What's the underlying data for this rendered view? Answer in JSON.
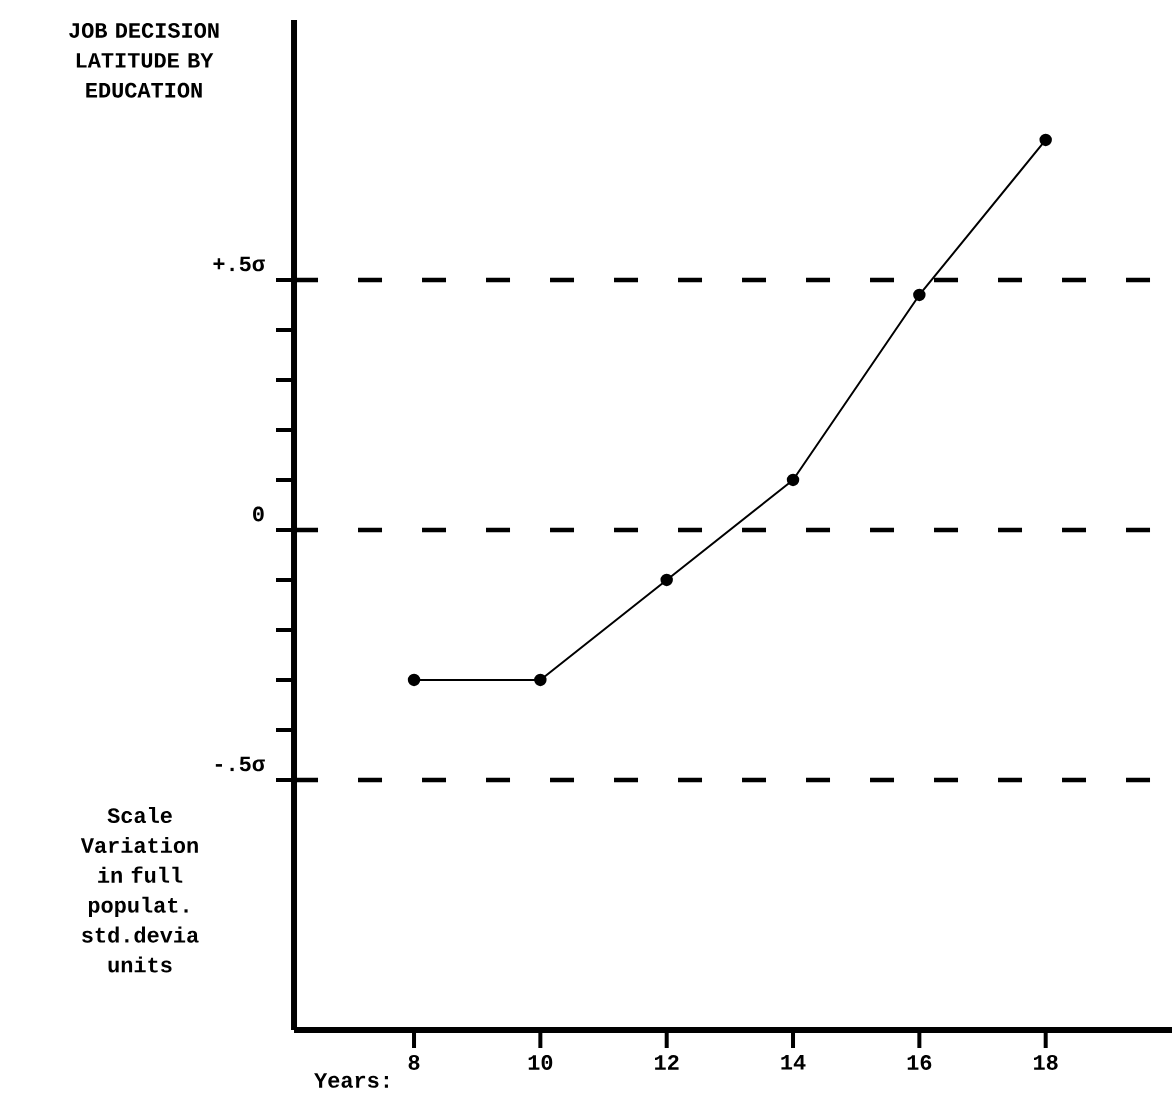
{
  "chart_data": {
    "type": "line",
    "title": "JOB DECISION LATITUDE BY EDUCATION",
    "xlabel": "Years:",
    "x": [
      8,
      10,
      12,
      14,
      16,
      18
    ],
    "values": [
      -0.3,
      -0.3,
      -0.1,
      0.1,
      0.47,
      0.78
    ],
    "color": "#000000",
    "marker": "circle",
    "line_style": "solid",
    "xlim": [
      6.1,
      20
    ],
    "ylim": [
      -1,
      1.02
    ],
    "xticks": [
      8,
      10,
      12,
      14,
      16,
      18
    ],
    "yticks": [
      {
        "value": -0.5,
        "label": "-.5σ"
      },
      {
        "value": -0.4,
        "label": null
      },
      {
        "value": -0.3,
        "label": null
      },
      {
        "value": -0.2,
        "label": null
      },
      {
        "value": -0.1,
        "label": null
      },
      {
        "value": 0,
        "label": "0"
      },
      {
        "value": 0.1,
        "label": null
      },
      {
        "value": 0.2,
        "label": null
      },
      {
        "value": 0.3,
        "label": null
      },
      {
        "value": 0.4,
        "label": null
      },
      {
        "value": 0.5,
        "label": "+.5σ"
      }
    ],
    "ref_lines": [
      {
        "axis": "y",
        "value": 0.5,
        "line_style": "dashed"
      },
      {
        "axis": "y",
        "value": 0,
        "line_style": "dashed"
      },
      {
        "axis": "y",
        "value": -0.5,
        "line_style": "dashed"
      }
    ],
    "annotations": [
      "Scale Variation in full populat. std.devia units"
    ]
  }
}
